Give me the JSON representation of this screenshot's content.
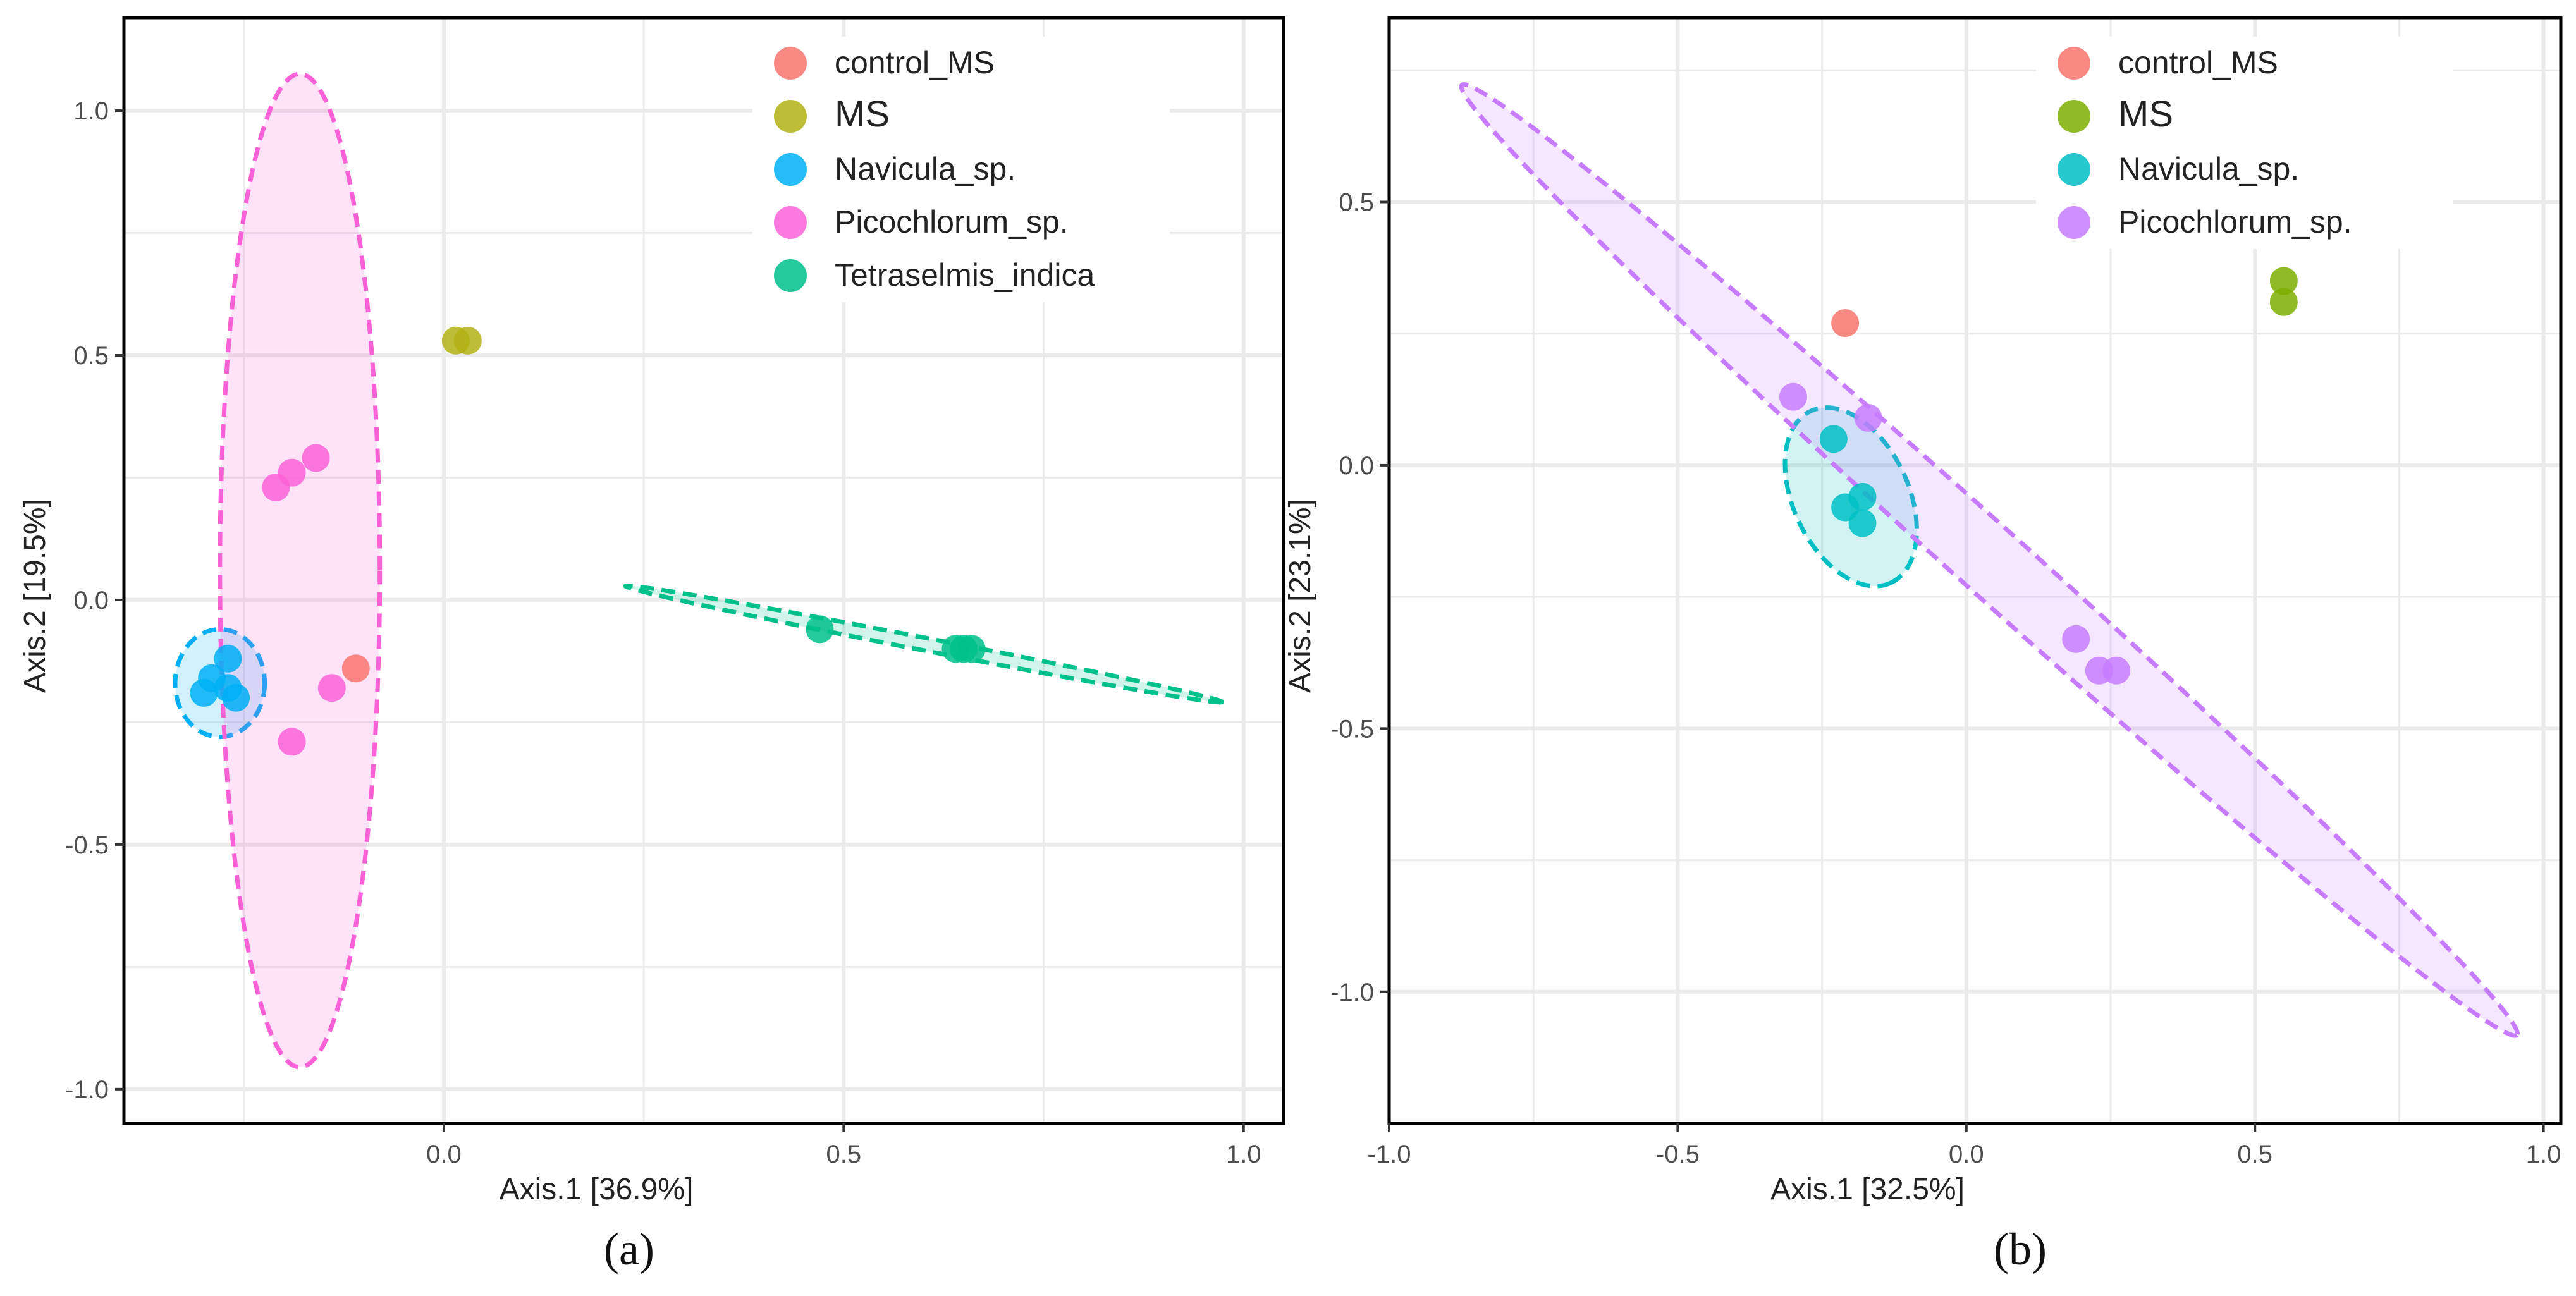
{
  "chart_data": [
    {
      "type": "scatter",
      "panel_label": "(a)",
      "xlabel": "Axis.1   [36.9%]",
      "ylabel": "Axis.2   [19.5%]",
      "xlim": [
        -0.4,
        1.05
      ],
      "ylim": [
        -1.07,
        1.19
      ],
      "xticks": [
        0.0,
        0.5,
        1.0
      ],
      "xtick_labels": [
        "0.0",
        "0.5",
        "1.0"
      ],
      "yticks": [
        -1.0,
        -0.5,
        0.0,
        0.5,
        1.0
      ],
      "ytick_labels": [
        "-1.0",
        "-0.5",
        "0.0",
        "0.5",
        "1.0"
      ],
      "grid": true,
      "legend_position": "top-right",
      "series": [
        {
          "name": "control_MS",
          "color": "#f8766d",
          "points": [
            [
              -0.11,
              -0.14
            ]
          ]
        },
        {
          "name": "MS",
          "color": "#b2b214",
          "points": [
            [
              0.015,
              0.53
            ],
            [
              0.03,
              0.53
            ]
          ]
        },
        {
          "name": "Navicula_sp.",
          "color": "#00b0f6",
          "points": [
            [
              -0.3,
              -0.19
            ],
            [
              -0.29,
              -0.16
            ],
            [
              -0.27,
              -0.12
            ],
            [
              -0.27,
              -0.18
            ],
            [
              -0.26,
              -0.2
            ]
          ],
          "ellipse": {
            "cx": -0.28,
            "cy": -0.17,
            "rx": 0.056,
            "ry": 0.11,
            "angle": 0
          }
        },
        {
          "name": "Picochlorum_sp.",
          "color": "#fb61d7",
          "points": [
            [
              -0.21,
              0.23
            ],
            [
              -0.19,
              0.26
            ],
            [
              -0.16,
              0.29
            ],
            [
              -0.14,
              -0.18
            ],
            [
              -0.19,
              -0.29
            ]
          ],
          "ellipse": {
            "cx": -0.18,
            "cy": 0.06,
            "rx": 0.1,
            "ry": 1.015,
            "angle": 0
          }
        },
        {
          "name": "Tetraselmis_indica",
          "color": "#00c08b",
          "points": [
            [
              0.47,
              -0.06
            ],
            [
              0.64,
              -0.1
            ],
            [
              0.65,
              -0.1
            ],
            [
              0.66,
              -0.1
            ]
          ],
          "ellipse": {
            "cx": 0.6,
            "cy": -0.09,
            "rx": 0.38,
            "ry": 0.008,
            "angle": -11
          }
        }
      ]
    },
    {
      "type": "scatter",
      "panel_label": "(b)",
      "xlabel": "Axis.1   [32.5%]",
      "ylabel": "Axis.2   [23.1%]",
      "xlim": [
        -1.0,
        1.03
      ],
      "ylim": [
        -1.25,
        0.85
      ],
      "xticks": [
        -1.0,
        -0.5,
        0.0,
        0.5,
        1.0
      ],
      "xtick_labels": [
        "-1.0",
        "-0.5",
        "0.0",
        "0.5",
        "1.0"
      ],
      "yticks": [
        -1.0,
        -0.5,
        0.0,
        0.5
      ],
      "ytick_labels": [
        "-1.0",
        "-0.5",
        "0.0",
        "0.5"
      ],
      "grid": true,
      "legend_position": "top-right",
      "series": [
        {
          "name": "control_MS",
          "color": "#f8766d",
          "points": [
            [
              -0.21,
              0.27
            ]
          ]
        },
        {
          "name": "MS",
          "color": "#7cae00",
          "points": [
            [
              0.55,
              0.35
            ],
            [
              0.55,
              0.31
            ]
          ]
        },
        {
          "name": "Navicula_sp.",
          "color": "#00bfc4",
          "points": [
            [
              -0.23,
              0.05
            ],
            [
              -0.21,
              -0.08
            ],
            [
              -0.18,
              -0.06
            ],
            [
              -0.18,
              -0.11
            ]
          ],
          "ellipse": {
            "cx": -0.2,
            "cy": -0.06,
            "rx": 0.25,
            "ry": 0.05,
            "angle": -65
          }
        },
        {
          "name": "Picochlorum_sp.",
          "color": "#c77cff",
          "points": [
            [
              -0.3,
              0.13
            ],
            [
              -0.17,
              0.09
            ],
            [
              0.19,
              -0.33
            ],
            [
              0.23,
              -0.39
            ],
            [
              0.26,
              -0.39
            ]
          ],
          "ellipse": {
            "cx": 0.04,
            "cy": -0.18,
            "rx": 1.5,
            "ry": 0.065,
            "angle": -42
          }
        }
      ]
    }
  ]
}
